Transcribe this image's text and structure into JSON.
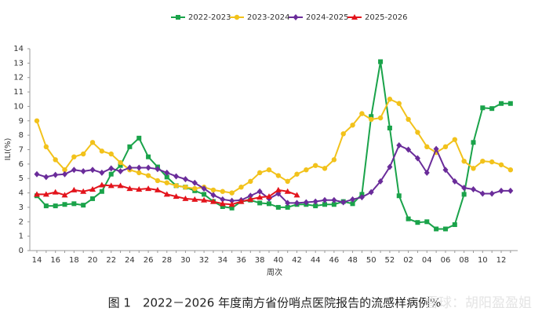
{
  "chart_data": {
    "type": "line",
    "caption": "图 1　2022－2026 年度南方省份哨点医院报告的流感样病例%",
    "watermark": "雪球：胡阳盈盈姐",
    "y_label": "ILI(%)",
    "x_label": "周次",
    "categories": [
      "14",
      null,
      "16",
      null,
      "18",
      null,
      "20",
      null,
      "22",
      null,
      "24",
      null,
      "26",
      null,
      "28",
      null,
      "30",
      null,
      "32",
      null,
      "34",
      null,
      "36",
      null,
      "38",
      null,
      "40",
      null,
      "42",
      null,
      "44",
      null,
      "46",
      null,
      "48",
      null,
      "50",
      null,
      "52",
      null,
      "02",
      null,
      "04",
      null,
      "06",
      null,
      "08",
      null,
      "10",
      null,
      "12",
      null
    ],
    "ylim": [
      0,
      14
    ],
    "yticks": [
      0,
      1,
      2,
      3,
      4,
      5,
      6,
      7,
      8,
      9,
      10,
      11,
      12,
      13,
      14
    ],
    "series": [
      {
        "name": "2022-2023",
        "color": "#1aa34a",
        "marker": "square",
        "values": [
          3.8,
          3.1,
          3.1,
          3.2,
          3.25,
          3.15,
          3.6,
          4.1,
          5.3,
          5.9,
          7.2,
          7.8,
          6.5,
          5.8,
          5.1,
          4.5,
          4.4,
          4.15,
          3.9,
          3.4,
          3.05,
          2.95,
          3.4,
          3.5,
          3.3,
          3.25,
          3.0,
          3.0,
          3.2,
          3.2,
          3.1,
          3.2,
          3.2,
          3.4,
          3.25,
          3.9,
          9.3,
          13.1,
          8.5,
          3.8,
          2.2,
          1.95,
          2.0,
          1.5,
          1.5,
          1.8,
          3.9,
          7.5,
          9.9,
          9.85,
          10.2,
          10.2
        ]
      },
      {
        "name": "2023-2024",
        "color": "#f2c21b",
        "marker": "circle",
        "values": [
          9.0,
          7.2,
          6.3,
          5.6,
          6.5,
          6.7,
          7.5,
          6.9,
          6.7,
          6.1,
          5.6,
          5.4,
          5.2,
          4.85,
          4.7,
          4.5,
          4.4,
          4.3,
          4.4,
          4.2,
          4.1,
          4.0,
          4.4,
          4.8,
          5.4,
          5.6,
          5.2,
          4.8,
          5.3,
          5.6,
          5.9,
          5.7,
          6.3,
          8.1,
          8.7,
          9.5,
          9.1,
          9.2,
          10.5,
          10.2,
          9.1,
          8.2,
          7.2,
          6.8,
          7.2,
          7.7,
          6.2,
          5.7,
          6.2,
          6.15,
          5.95,
          5.6
        ]
      },
      {
        "name": "2024-2025",
        "color": "#6a2c9a",
        "marker": "diamond",
        "values": [
          5.3,
          5.1,
          5.25,
          5.3,
          5.6,
          5.5,
          5.6,
          5.4,
          5.7,
          5.5,
          5.75,
          5.75,
          5.75,
          5.65,
          5.4,
          5.15,
          4.95,
          4.7,
          4.3,
          3.85,
          3.55,
          3.45,
          3.5,
          3.8,
          4.1,
          3.6,
          3.95,
          3.3,
          3.3,
          3.35,
          3.4,
          3.5,
          3.5,
          3.35,
          3.55,
          3.7,
          4.05,
          4.8,
          5.8,
          7.3,
          7.0,
          6.4,
          5.4,
          7.05,
          5.6,
          4.8,
          4.35,
          4.25,
          3.95,
          3.95,
          4.15,
          4.15
        ]
      },
      {
        "name": "2025-2026",
        "color": "#e3141c",
        "marker": "triangle",
        "values": [
          3.9,
          3.9,
          4.05,
          3.85,
          4.2,
          4.1,
          4.25,
          4.55,
          4.5,
          4.5,
          4.3,
          4.25,
          4.3,
          4.2,
          3.9,
          3.75,
          3.6,
          3.55,
          3.5,
          3.4,
          3.25,
          3.2,
          3.4,
          3.55,
          3.7,
          3.75,
          4.2,
          4.1,
          3.85,
          null,
          null,
          null,
          null,
          null,
          null,
          null,
          null,
          null,
          null,
          null,
          null,
          null,
          null,
          null,
          null,
          null,
          null,
          null,
          null,
          null,
          null,
          null
        ]
      }
    ]
  }
}
